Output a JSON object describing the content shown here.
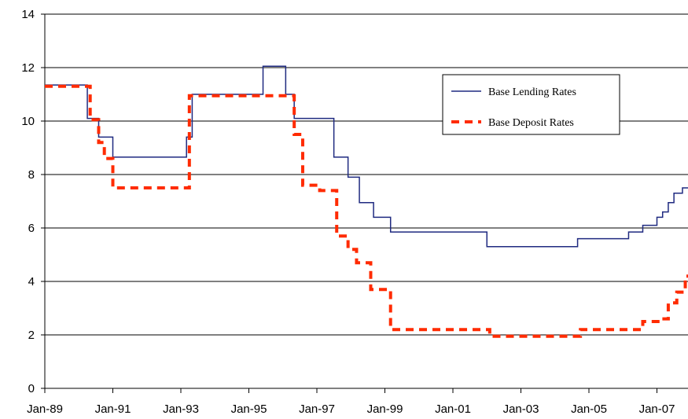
{
  "chart_data": {
    "type": "line",
    "title": "",
    "xlabel": "",
    "ylabel": "",
    "x_domain": [
      "1989-01",
      "2007-12"
    ],
    "x_ticks": [
      {
        "date": "1989-01",
        "label": "Jan-89"
      },
      {
        "date": "1991-01",
        "label": "Jan-91"
      },
      {
        "date": "1993-01",
        "label": "Jan-93"
      },
      {
        "date": "1995-01",
        "label": "Jan-95"
      },
      {
        "date": "1997-01",
        "label": "Jan-97"
      },
      {
        "date": "1999-01",
        "label": "Jan-99"
      },
      {
        "date": "2001-01",
        "label": "Jan-01"
      },
      {
        "date": "2003-01",
        "label": "Jan-03"
      },
      {
        "date": "2005-01",
        "label": "Jan-05"
      },
      {
        "date": "2007-01",
        "label": "Jan-07"
      }
    ],
    "ylim": [
      0,
      14
    ],
    "y_ticks": [
      {
        "value": 0,
        "label": "0"
      },
      {
        "value": 2,
        "label": "2"
      },
      {
        "value": 4,
        "label": "4"
      },
      {
        "value": 6,
        "label": "6"
      },
      {
        "value": 8,
        "label": "8"
      },
      {
        "value": 10,
        "label": "10"
      },
      {
        "value": 12,
        "label": "12"
      },
      {
        "value": 14,
        "label": "14"
      }
    ],
    "grid": "horizontal",
    "legend_position": "right",
    "series": [
      {
        "name": "Base Lending Rates",
        "style": "solid",
        "color": "#1f2a80",
        "points": [
          [
            "1989-01",
            11.35
          ],
          [
            "1990-01",
            11.35
          ],
          [
            "1990-04",
            10.1
          ],
          [
            "1990-08",
            9.4
          ],
          [
            "1991-01",
            8.65
          ],
          [
            "1993-01",
            8.65
          ],
          [
            "1993-03",
            9.4
          ],
          [
            "1993-05",
            11.0
          ],
          [
            "1995-01",
            11.0
          ],
          [
            "1995-06",
            12.05
          ],
          [
            "1996-02",
            11.0
          ],
          [
            "1996-05",
            10.1
          ],
          [
            "1997-07",
            8.65
          ],
          [
            "1997-12",
            7.9
          ],
          [
            "1998-04",
            6.95
          ],
          [
            "1998-09",
            6.4
          ],
          [
            "1999-03",
            5.85
          ],
          [
            "2002-01",
            5.3
          ],
          [
            "2004-09",
            5.6
          ],
          [
            "2006-03",
            5.85
          ],
          [
            "2006-08",
            6.1
          ],
          [
            "2007-01",
            6.4
          ],
          [
            "2007-03",
            6.6
          ],
          [
            "2007-05",
            6.95
          ],
          [
            "2007-07",
            7.3
          ],
          [
            "2007-10",
            7.5
          ],
          [
            "2007-12",
            7.5
          ]
        ]
      },
      {
        "name": "Base Deposit Rates",
        "style": "dashed",
        "color": "#ff2b00",
        "points": [
          [
            "1989-01",
            11.3
          ],
          [
            "1990-03",
            11.3
          ],
          [
            "1990-05",
            10.05
          ],
          [
            "1990-08",
            9.2
          ],
          [
            "1990-10",
            8.6
          ],
          [
            "1991-01",
            7.5
          ],
          [
            "1993-01",
            7.5
          ],
          [
            "1993-04",
            10.95
          ],
          [
            "1996-02",
            10.95
          ],
          [
            "1996-05",
            9.5
          ],
          [
            "1996-08",
            7.6
          ],
          [
            "1997-02",
            7.4
          ],
          [
            "1997-08",
            5.7
          ],
          [
            "1997-12",
            5.2
          ],
          [
            "1998-03",
            4.7
          ],
          [
            "1998-08",
            3.7
          ],
          [
            "1999-03",
            2.2
          ],
          [
            "2001-12",
            2.2
          ],
          [
            "2002-02",
            1.95
          ],
          [
            "2004-08",
            1.95
          ],
          [
            "2004-10",
            2.2
          ],
          [
            "2006-06",
            2.2
          ],
          [
            "2006-08",
            2.5
          ],
          [
            "2007-02",
            2.6
          ],
          [
            "2007-05",
            3.2
          ],
          [
            "2007-08",
            3.6
          ],
          [
            "2007-11",
            4.2
          ],
          [
            "2007-12",
            4.2
          ]
        ]
      }
    ]
  }
}
